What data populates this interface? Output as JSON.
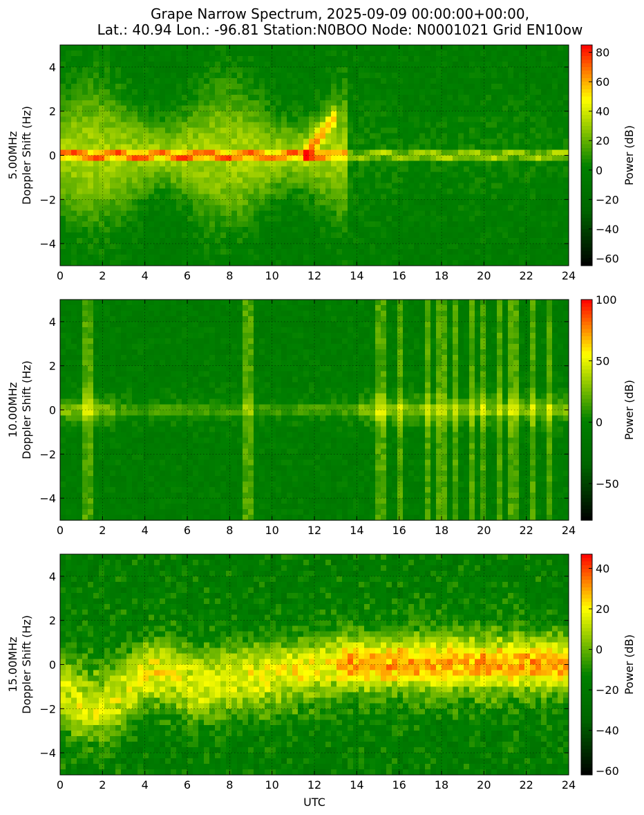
{
  "title_line1": "Grape Narrow Spectrum, 2025-09-09 00:00:00+00:00,",
  "title_line2": "Lat.: 40.94 Lon.: -96.81 Station:N0BOO Node: N0001021 Grid EN10ow",
  "colors": {
    "colormap_stops": [
      "#000000",
      "#006400",
      "#008000",
      "#ffff00",
      "#ff0000"
    ],
    "grid": "#000000"
  },
  "chart_data": [
    {
      "type": "heatmap",
      "frequency_label": "5.00MHz",
      "ylabel": "Doppler Shift (Hz)",
      "xlabel": "",
      "xlim": [
        0,
        24
      ],
      "ylim": [
        -5,
        5
      ],
      "xticks": [
        0,
        2,
        4,
        6,
        8,
        10,
        12,
        14,
        16,
        18,
        20,
        22,
        24
      ],
      "yticks": [
        -4,
        -2,
        0,
        2,
        4
      ],
      "grid": true,
      "colorbar": {
        "label": "Power (dB)",
        "range": [
          -65,
          85
        ],
        "ticks": [
          -60,
          -40,
          -20,
          0,
          20,
          40,
          60,
          80
        ]
      }
    },
    {
      "type": "heatmap",
      "frequency_label": "10.00MHz",
      "ylabel": "Doppler Shift (Hz)",
      "xlabel": "",
      "xlim": [
        0,
        24
      ],
      "ylim": [
        -5,
        5
      ],
      "xticks": [
        0,
        2,
        4,
        6,
        8,
        10,
        12,
        14,
        16,
        18,
        20,
        22,
        24
      ],
      "yticks": [
        -4,
        -2,
        0,
        2,
        4
      ],
      "grid": true,
      "colorbar": {
        "label": "Power (dB)",
        "range": [
          -80,
          100
        ],
        "ticks": [
          -50,
          0,
          50,
          100
        ]
      }
    },
    {
      "type": "heatmap",
      "frequency_label": "15.00MHz",
      "ylabel": "Doppler Shift (Hz)",
      "xlabel": "UTC",
      "xlim": [
        0,
        24
      ],
      "ylim": [
        -5,
        5
      ],
      "xticks": [
        0,
        2,
        4,
        6,
        8,
        10,
        12,
        14,
        16,
        18,
        20,
        22,
        24
      ],
      "yticks": [
        -4,
        -2,
        0,
        2,
        4
      ],
      "grid": true,
      "colorbar": {
        "label": "Power (dB)",
        "range": [
          -62,
          47
        ],
        "ticks": [
          -60,
          -40,
          -20,
          0,
          20,
          40
        ]
      }
    }
  ]
}
